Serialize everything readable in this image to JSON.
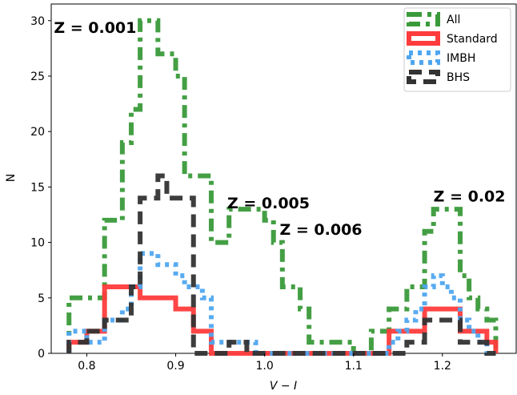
{
  "chart_data": {
    "type": "histogram",
    "xlabel": "V − I",
    "ylabel": "N",
    "xlim": [
      0.76,
      1.283
    ],
    "ylim": [
      0,
      31.5
    ],
    "xticks": [
      0.8,
      0.9,
      1.0,
      1.1,
      1.2
    ],
    "xtick_labels": [
      "0.8",
      "0.9",
      "1.0",
      "1.1",
      "1.2"
    ],
    "yticks": [
      0,
      5,
      10,
      15,
      20,
      25,
      30
    ],
    "ytick_labels": [
      "0",
      "5",
      "10",
      "15",
      "20",
      "25",
      "30"
    ],
    "grid": false,
    "legend_position": "top-right",
    "bin_edges": [
      0.78,
      0.79,
      0.8,
      0.81,
      0.82,
      0.83,
      0.84,
      0.85,
      0.86,
      0.87,
      0.88,
      0.89,
      0.9,
      0.91,
      0.92,
      0.93,
      0.94,
      0.95,
      0.96,
      0.97,
      0.98,
      0.99,
      1.0,
      1.01,
      1.02,
      1.03,
      1.04,
      1.05,
      1.06,
      1.07,
      1.08,
      1.09,
      1.1,
      1.11,
      1.12,
      1.13,
      1.14,
      1.15,
      1.16,
      1.17,
      1.18,
      1.19,
      1.2,
      1.21,
      1.22,
      1.23,
      1.24,
      1.25,
      1.26
    ],
    "series": [
      {
        "name": "All",
        "color": "#3a9a3a",
        "dash": "dashdot",
        "values": [
          5,
          5,
          5,
          5,
          12,
          12,
          19,
          22,
          30,
          30,
          27,
          27,
          25,
          16,
          16,
          16,
          10,
          10,
          13,
          13,
          13,
          13,
          12,
          10,
          6,
          6,
          4,
          1,
          1,
          1,
          1,
          1,
          0,
          0,
          2,
          2,
          4,
          4,
          6,
          6,
          11,
          13,
          13,
          13,
          7,
          5,
          4,
          3
        ]
      },
      {
        "name": "Standard",
        "color": "#ff3b3b",
        "dash": "solid",
        "values": [
          1,
          1,
          2,
          2,
          6,
          6,
          6,
          6,
          5,
          5,
          5,
          5,
          4,
          4,
          2,
          2,
          0,
          0,
          0,
          0,
          0,
          0,
          0,
          0,
          0,
          0,
          0,
          0,
          0,
          0,
          0,
          0,
          0,
          0,
          0,
          0,
          2,
          2,
          2,
          2,
          4,
          4,
          4,
          4,
          2,
          2,
          2,
          1
        ]
      },
      {
        "name": "IMBH",
        "color": "#4fa6f0",
        "dash": "dotted",
        "values": [
          2,
          2,
          1,
          1,
          3,
          3,
          4,
          6,
          9,
          9,
          8,
          8,
          7,
          6,
          6,
          5,
          1,
          1,
          1,
          1,
          1,
          0,
          0,
          0,
          0,
          0,
          0,
          0,
          0,
          0,
          0,
          0,
          0,
          0,
          0,
          0,
          1,
          2,
          3,
          4,
          6,
          7,
          6,
          5,
          3,
          2,
          1,
          0
        ]
      },
      {
        "name": "BHS",
        "color": "#333333",
        "dash": "dashed",
        "values": [
          1,
          1,
          2,
          2,
          3,
          3,
          3,
          6,
          14,
          14,
          16,
          14,
          14,
          14,
          0,
          0,
          0,
          0,
          1,
          1,
          0,
          0,
          0,
          0,
          0,
          0,
          0,
          0,
          0,
          0,
          0,
          0,
          0,
          0,
          0,
          0,
          0,
          0,
          1,
          1,
          3,
          3,
          3,
          3,
          1,
          1,
          1,
          0
        ]
      }
    ],
    "annotations": [
      {
        "text": "Z = 0.001",
        "x": 0.763,
        "y": 29.4
      },
      {
        "text": "Z = 0.005",
        "x": 0.958,
        "y": 13.6
      },
      {
        "text": "Z = 0.006",
        "x": 1.017,
        "y": 11.2
      },
      {
        "text": "Z = 0.02",
        "x": 1.19,
        "y": 14.2
      }
    ]
  }
}
